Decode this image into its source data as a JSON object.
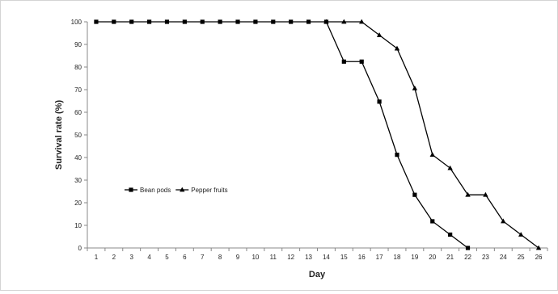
{
  "chart_data": {
    "type": "line",
    "title": "",
    "xlabel": "Day",
    "ylabel": "Survival rate (%)",
    "x": [
      1,
      2,
      3,
      4,
      5,
      6,
      7,
      8,
      9,
      10,
      11,
      12,
      13,
      14,
      15,
      16,
      17,
      18,
      19,
      20,
      21,
      22,
      23,
      24,
      25,
      26
    ],
    "ylim": [
      0,
      100
    ],
    "yticks": [
      0,
      10,
      20,
      30,
      40,
      50,
      60,
      70,
      80,
      90,
      100
    ],
    "grid": false,
    "legend_position": "left",
    "series": [
      {
        "name": "Bean pods",
        "marker": "square",
        "color": "#000000",
        "x": [
          1,
          2,
          3,
          4,
          5,
          6,
          7,
          8,
          9,
          10,
          11,
          12,
          13,
          14,
          15,
          16,
          17,
          18,
          19,
          20,
          21,
          22
        ],
        "values": [
          100,
          100,
          100,
          100,
          100,
          100,
          100,
          100,
          100,
          100,
          100,
          100,
          100,
          100,
          82.4,
          82.4,
          64.7,
          41.2,
          23.5,
          11.8,
          5.9,
          0
        ]
      },
      {
        "name": "Pepper fruits",
        "marker": "triangle",
        "color": "#000000",
        "x": [
          14,
          15,
          16,
          17,
          18,
          19,
          20,
          21,
          22,
          23,
          24,
          25,
          26
        ],
        "values": [
          100,
          100,
          100,
          94.1,
          88.2,
          70.6,
          41.2,
          35.3,
          23.5,
          23.5,
          11.8,
          5.9,
          0
        ]
      }
    ]
  }
}
